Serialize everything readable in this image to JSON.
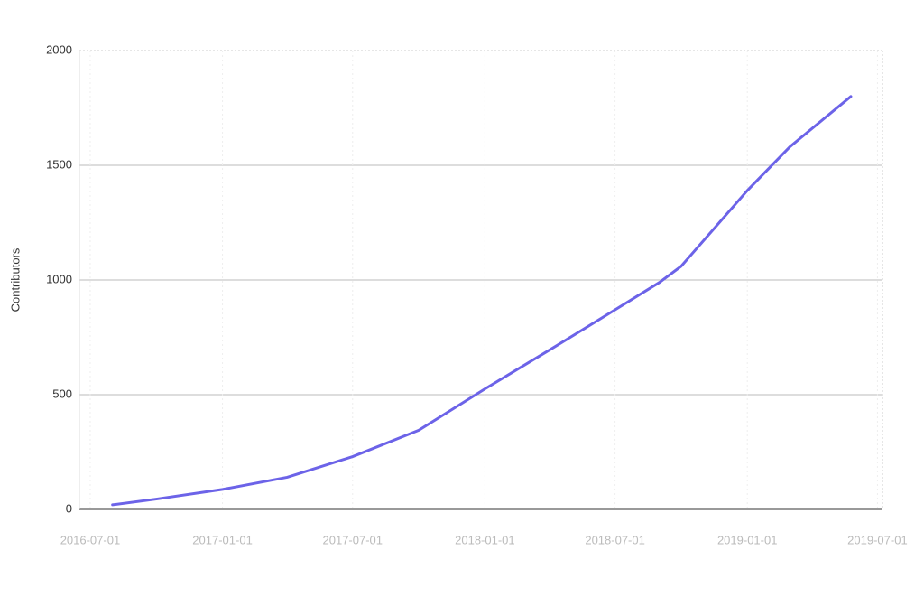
{
  "chart_data": {
    "type": "line",
    "y_label": "Contributors",
    "x": [
      "2016-08-01",
      "2016-10-01",
      "2017-01-01",
      "2017-04-01",
      "2017-07-01",
      "2017-10-01",
      "2018-01-01",
      "2018-04-01",
      "2018-07-01",
      "2018-09-01",
      "2018-10-01",
      "2019-01-01",
      "2019-03-01",
      "2019-05-25"
    ],
    "series": [
      {
        "name": "Contributors",
        "color": "#6c63e8",
        "values": [
          20,
          45,
          87,
          140,
          230,
          345,
          525,
          695,
          870,
          990,
          1060,
          1390,
          1580,
          1800
        ]
      }
    ],
    "xlim": [
      "2016-06-16",
      "2019-07-08"
    ],
    "xticks": [
      "2016-07-01",
      "2017-01-01",
      "2017-07-01",
      "2018-01-01",
      "2018-07-01",
      "2019-01-01",
      "2019-07-01"
    ],
    "ylim": [
      0,
      2000
    ],
    "yticks": [
      0,
      500,
      1000,
      1500,
      2000
    ],
    "grid": true
  }
}
